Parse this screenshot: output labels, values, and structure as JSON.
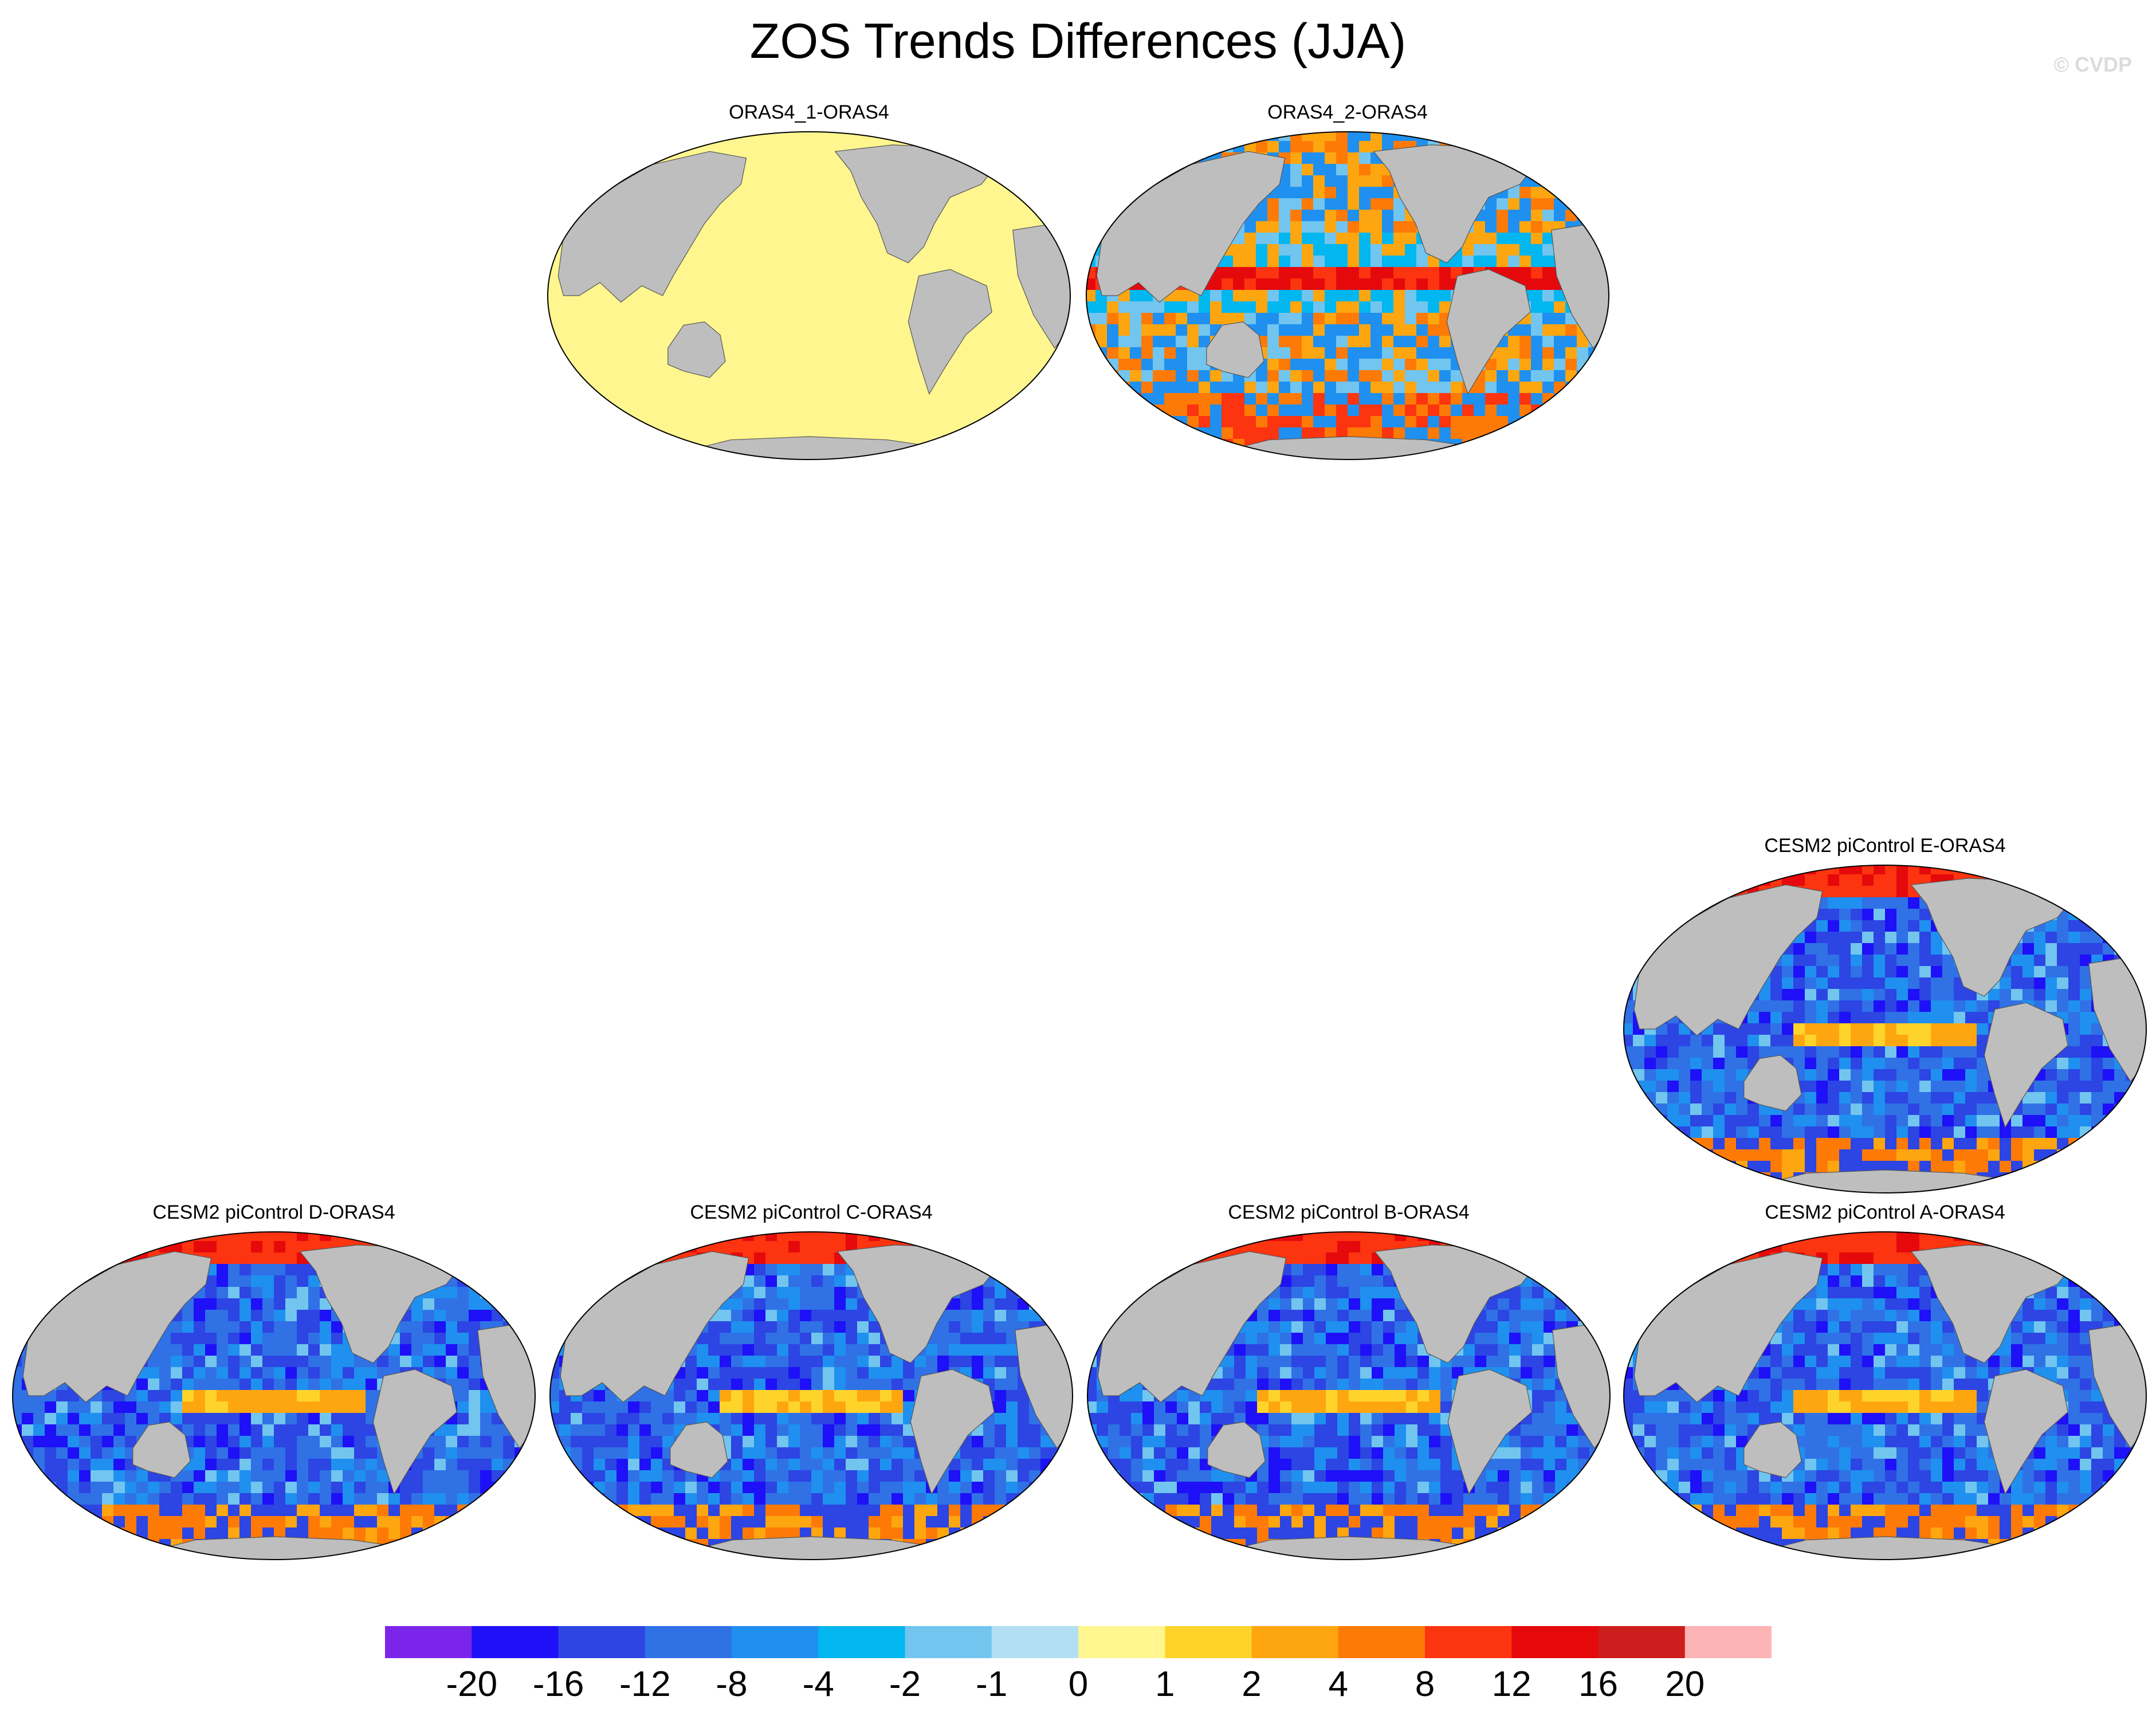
{
  "title": "ZOS Trends Differences (JJA)",
  "credit": "© CVDP",
  "colors": {
    "land": "#bebebe",
    "ocean_dominant_model": "#2e7ce8",
    "ocean_dominant_oras4_1": "#fff68f"
  },
  "panels": [
    {
      "id": "oras4-1",
      "title": "ORAS4_1-ORAS4",
      "pattern": "uniform-near-zero"
    },
    {
      "id": "oras4-2",
      "title": "ORAS4_2-ORAS4",
      "pattern": "mixed-positive"
    },
    {
      "id": "cesm2-e",
      "title": "CESM2 piControl E-ORAS4",
      "pattern": "mostly-negative"
    },
    {
      "id": "cesm2-d",
      "title": "CESM2 piControl D-ORAS4",
      "pattern": "mostly-negative"
    },
    {
      "id": "cesm2-c",
      "title": "CESM2 piControl C-ORAS4",
      "pattern": "mostly-negative"
    },
    {
      "id": "cesm2-b",
      "title": "CESM2 piControl B-ORAS4",
      "pattern": "mostly-negative"
    },
    {
      "id": "cesm2-a",
      "title": "CESM2 piControl A-ORAS4",
      "pattern": "mostly-negative"
    }
  ],
  "colorbar": {
    "colors": [
      "#7c25ea",
      "#1e10f7",
      "#2c45e3",
      "#3071e6",
      "#1f90ef",
      "#02b7ef",
      "#71c5ef",
      "#b3dff4",
      "#fff68f",
      "#fed42b",
      "#fea610",
      "#fe7a07",
      "#fd3410",
      "#e5090c",
      "#cd1d1d",
      "#fdb4b4"
    ],
    "labels": [
      "-20",
      "-16",
      "-12",
      "-8",
      "-4",
      "-2",
      "-1",
      "0",
      "1",
      "2",
      "4",
      "8",
      "12",
      "16",
      "20"
    ]
  }
}
